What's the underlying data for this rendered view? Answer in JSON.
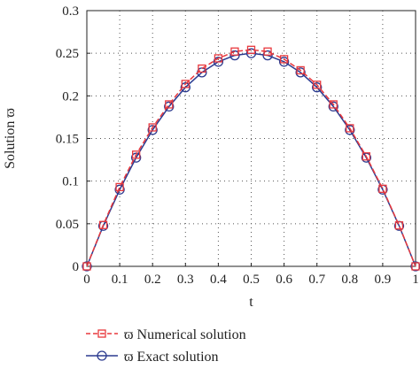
{
  "chart_data": {
    "type": "line",
    "xlabel": "t",
    "ylabel": "Solution ϖ",
    "xlim": [
      0,
      1
    ],
    "ylim": [
      0,
      0.3
    ],
    "xticks": [
      0,
      0.1,
      0.2,
      0.3,
      0.4,
      0.5,
      0.6,
      0.7,
      0.8,
      0.9,
      1
    ],
    "xtick_labels": [
      "0",
      "0.1",
      "0.2",
      "0.3",
      "0.4",
      "0.5",
      "0.6",
      "0.7",
      "0.8",
      "0.9",
      "1"
    ],
    "yticks": [
      0,
      0.05,
      0.1,
      0.15,
      0.2,
      0.25,
      0.3
    ],
    "ytick_labels": [
      "0",
      "0.05",
      "0.1",
      "0.15",
      "0.2",
      "0.25",
      "0.3"
    ],
    "grid": true,
    "legend_position": "bottom",
    "x": [
      0,
      0.05,
      0.1,
      0.15,
      0.2,
      0.25,
      0.3,
      0.35,
      0.4,
      0.45,
      0.5,
      0.55,
      0.6,
      0.65,
      0.7,
      0.75,
      0.8,
      0.85,
      0.9,
      0.95,
      1
    ],
    "series": [
      {
        "name": "ϖ Numerical solution",
        "color": "#e8383d",
        "marker": "square",
        "line_style": "dashed",
        "values": [
          0,
          0.0485,
          0.093,
          0.131,
          0.163,
          0.19,
          0.214,
          0.232,
          0.244,
          0.252,
          0.254,
          0.252,
          0.243,
          0.23,
          0.213,
          0.19,
          0.162,
          0.129,
          0.091,
          0.048,
          0
        ]
      },
      {
        "name": "ϖ Exact solution",
        "color": "#2b3a8f",
        "marker": "circle",
        "line_style": "solid",
        "values": [
          0,
          0.0475,
          0.09,
          0.1275,
          0.16,
          0.1875,
          0.21,
          0.2275,
          0.24,
          0.2475,
          0.25,
          0.2475,
          0.24,
          0.2275,
          0.21,
          0.1875,
          0.16,
          0.1275,
          0.09,
          0.0475,
          0
        ]
      }
    ]
  }
}
